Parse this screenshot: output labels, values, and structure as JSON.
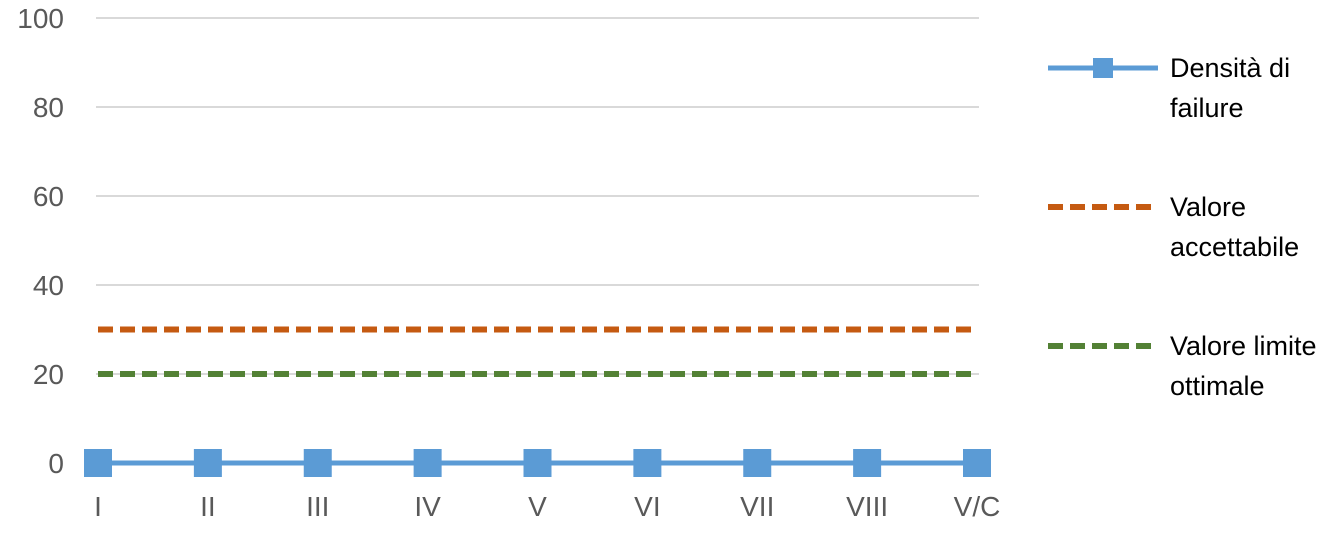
{
  "chart_data": {
    "type": "line",
    "categories": [
      "I",
      "II",
      "III",
      "IV",
      "V",
      "VI",
      "VII",
      "VIII",
      "V/C"
    ],
    "ylim": [
      0,
      100
    ],
    "yticks": [
      0,
      20,
      40,
      60,
      80,
      100
    ],
    "grid": true,
    "legend_position": "right",
    "series": [
      {
        "name": "Densità di failure",
        "values": [
          0,
          0,
          0,
          0,
          0,
          0,
          0,
          0,
          0
        ],
        "color": "#5B9BD5",
        "style": "solid",
        "marker": "square"
      },
      {
        "name": "Valore accettabile",
        "values": [
          30,
          30,
          30,
          30,
          30,
          30,
          30,
          30,
          30
        ],
        "color": "#C55A11",
        "style": "dashed",
        "marker": "none"
      },
      {
        "name": "Valore limite ottimale",
        "values": [
          20,
          20,
          20,
          20,
          20,
          20,
          20,
          20,
          20
        ],
        "color": "#538135",
        "style": "dashed",
        "marker": "none"
      }
    ]
  },
  "legend": {
    "items": [
      {
        "label": "Densità di failure"
      },
      {
        "label": "Valore accettabile"
      },
      {
        "label": "Valore limite ottimale"
      }
    ]
  }
}
